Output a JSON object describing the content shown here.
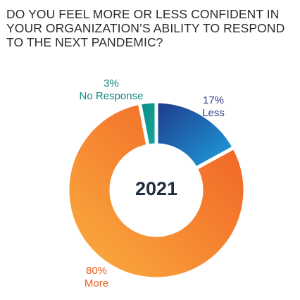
{
  "chart_data": {
    "type": "pie",
    "variant": "donut",
    "title": "DO YOU FEEL MORE OR LESS CONFIDENT IN YOUR ORGANIZATION’S ABILITY TO RESPOND TO THE NEXT PANDEMIC?",
    "center_label": "2021",
    "legend": "none",
    "slices": [
      {
        "value": 17,
        "pct_label": "17%",
        "label": "Less",
        "color": "#1e3a8a",
        "color_end": "#1ea2e0"
      },
      {
        "value": 80,
        "pct_label": "80%",
        "label": "More",
        "color": "#ef5b22",
        "color_end": "#fbb040"
      },
      {
        "value": 3,
        "pct_label": "3%",
        "label": "No Response",
        "color": "#0f8b83",
        "color_end": "#14a89d"
      }
    ]
  }
}
